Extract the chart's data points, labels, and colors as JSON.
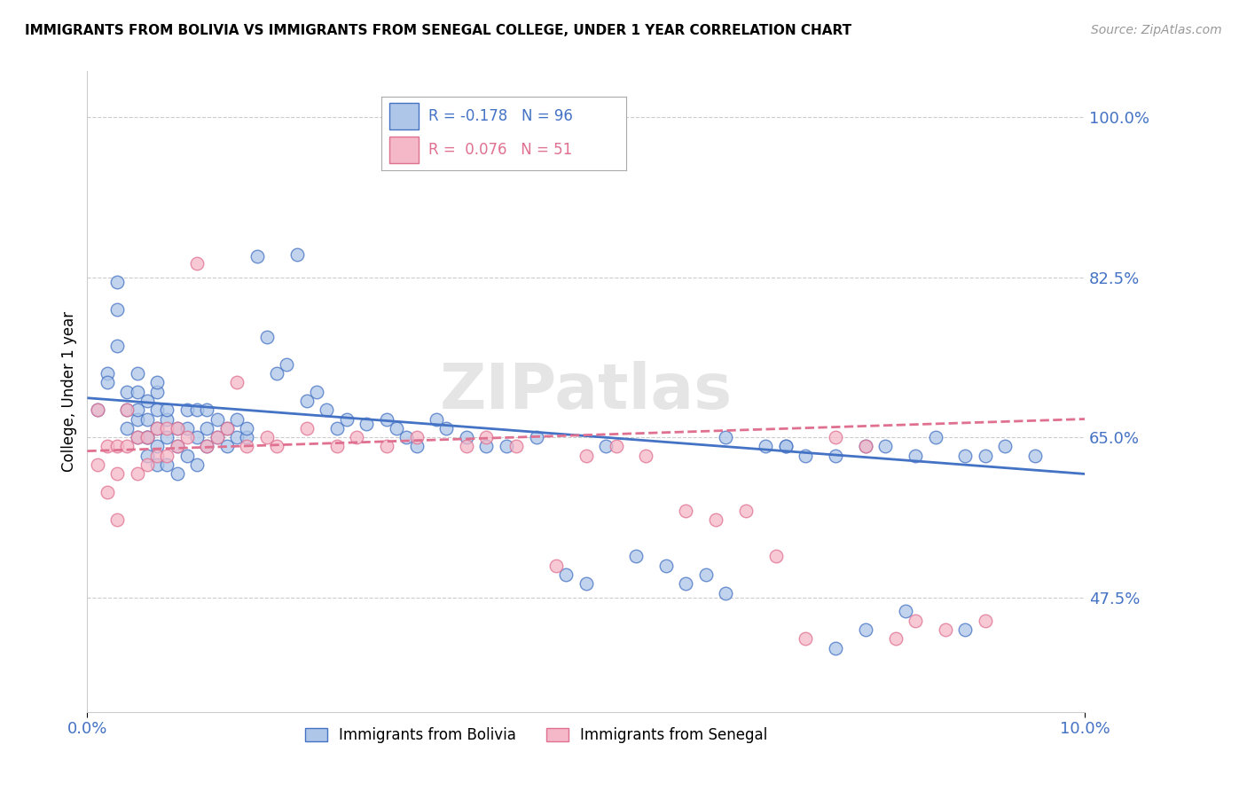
{
  "title": "IMMIGRANTS FROM BOLIVIA VS IMMIGRANTS FROM SENEGAL COLLEGE, UNDER 1 YEAR CORRELATION CHART",
  "source": "Source: ZipAtlas.com",
  "ylabel": "College, Under 1 year",
  "xlim": [
    0.0,
    0.1
  ],
  "ylim": [
    0.35,
    1.05
  ],
  "ytick_values": [
    0.475,
    0.65,
    0.825,
    1.0
  ],
  "ytick_labels": [
    "47.5%",
    "65.0%",
    "82.5%",
    "100.0%"
  ],
  "xtick_values": [
    0.0,
    0.1
  ],
  "xtick_labels": [
    "0.0%",
    "10.0%"
  ],
  "grid_color": "#cccccc",
  "axis_color": "#4472c4",
  "bolivia_color": "#aec6e8",
  "bolivia_edge_color": "#4472c4",
  "senegal_color": "#f4b8c8",
  "senegal_edge_color": "#e07090",
  "legend_R_bolivia": "R = -0.178",
  "legend_N_bolivia": "N = 96",
  "legend_R_senegal": "R =  0.076",
  "legend_N_senegal": "N = 51",
  "bolivia_trend_x": [
    0.0,
    0.1
  ],
  "bolivia_trend_y": [
    0.693,
    0.61
  ],
  "senegal_trend_x": [
    0.0,
    0.1
  ],
  "senegal_trend_y": [
    0.635,
    0.67
  ],
  "bolivia_scatter_x": [
    0.001,
    0.002,
    0.002,
    0.003,
    0.003,
    0.003,
    0.004,
    0.004,
    0.004,
    0.005,
    0.005,
    0.005,
    0.005,
    0.005,
    0.006,
    0.006,
    0.006,
    0.006,
    0.006,
    0.007,
    0.007,
    0.007,
    0.007,
    0.007,
    0.007,
    0.008,
    0.008,
    0.008,
    0.008,
    0.009,
    0.009,
    0.009,
    0.01,
    0.01,
    0.01,
    0.011,
    0.011,
    0.011,
    0.012,
    0.012,
    0.012,
    0.013,
    0.013,
    0.014,
    0.014,
    0.015,
    0.015,
    0.016,
    0.016,
    0.017,
    0.018,
    0.019,
    0.02,
    0.021,
    0.022,
    0.023,
    0.024,
    0.025,
    0.026,
    0.028,
    0.03,
    0.031,
    0.032,
    0.033,
    0.035,
    0.036,
    0.038,
    0.04,
    0.042,
    0.045,
    0.048,
    0.05,
    0.052,
    0.055,
    0.058,
    0.06,
    0.062,
    0.064,
    0.068,
    0.07,
    0.072,
    0.075,
    0.078,
    0.08,
    0.083,
    0.085,
    0.088,
    0.09,
    0.092,
    0.095,
    0.064,
    0.07,
    0.075,
    0.078,
    0.082,
    0.088
  ],
  "bolivia_scatter_y": [
    0.68,
    0.72,
    0.71,
    0.75,
    0.79,
    0.82,
    0.66,
    0.68,
    0.7,
    0.65,
    0.67,
    0.68,
    0.7,
    0.72,
    0.63,
    0.65,
    0.67,
    0.69,
    0.65,
    0.62,
    0.64,
    0.66,
    0.68,
    0.7,
    0.71,
    0.62,
    0.65,
    0.67,
    0.68,
    0.61,
    0.64,
    0.66,
    0.63,
    0.66,
    0.68,
    0.62,
    0.65,
    0.68,
    0.64,
    0.66,
    0.68,
    0.65,
    0.67,
    0.64,
    0.66,
    0.65,
    0.67,
    0.65,
    0.66,
    0.848,
    0.76,
    0.72,
    0.73,
    0.85,
    0.69,
    0.7,
    0.68,
    0.66,
    0.67,
    0.665,
    0.67,
    0.66,
    0.65,
    0.64,
    0.67,
    0.66,
    0.65,
    0.64,
    0.64,
    0.65,
    0.5,
    0.49,
    0.64,
    0.52,
    0.51,
    0.49,
    0.5,
    0.48,
    0.64,
    0.64,
    0.63,
    0.63,
    0.64,
    0.64,
    0.63,
    0.65,
    0.63,
    0.63,
    0.64,
    0.63,
    0.65,
    0.64,
    0.42,
    0.44,
    0.46,
    0.44
  ],
  "senegal_scatter_x": [
    0.001,
    0.001,
    0.002,
    0.002,
    0.003,
    0.003,
    0.003,
    0.004,
    0.004,
    0.005,
    0.005,
    0.006,
    0.006,
    0.007,
    0.007,
    0.008,
    0.008,
    0.009,
    0.009,
    0.01,
    0.011,
    0.012,
    0.013,
    0.014,
    0.015,
    0.016,
    0.018,
    0.019,
    0.022,
    0.025,
    0.027,
    0.03,
    0.033,
    0.038,
    0.04,
    0.043,
    0.047,
    0.05,
    0.053,
    0.056,
    0.06,
    0.063,
    0.066,
    0.069,
    0.072,
    0.075,
    0.078,
    0.081,
    0.083,
    0.086,
    0.09
  ],
  "senegal_scatter_y": [
    0.62,
    0.68,
    0.59,
    0.64,
    0.56,
    0.61,
    0.64,
    0.64,
    0.68,
    0.61,
    0.65,
    0.62,
    0.65,
    0.63,
    0.66,
    0.63,
    0.66,
    0.64,
    0.66,
    0.65,
    0.84,
    0.64,
    0.65,
    0.66,
    0.71,
    0.64,
    0.65,
    0.64,
    0.66,
    0.64,
    0.65,
    0.64,
    0.65,
    0.64,
    0.65,
    0.64,
    0.51,
    0.63,
    0.64,
    0.63,
    0.57,
    0.56,
    0.57,
    0.52,
    0.43,
    0.65,
    0.64,
    0.43,
    0.45,
    0.44,
    0.45
  ]
}
